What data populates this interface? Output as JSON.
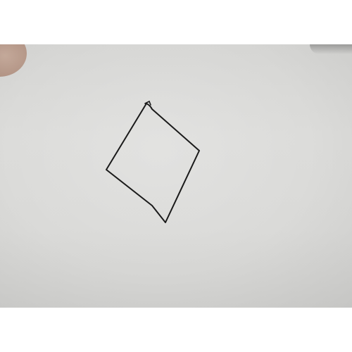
{
  "photo": {
    "subject": "hand-drawn-quadrilateral",
    "ink_color": "#1a1a1a",
    "paper_color": "#d9d9d7",
    "letterbox_color": "#ffffff"
  }
}
